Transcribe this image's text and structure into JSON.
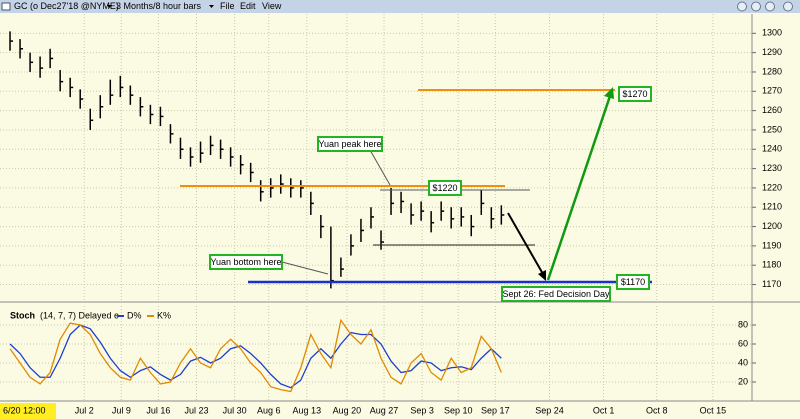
{
  "toolbar": {
    "symbol": "GC (o Dec27'18 @NYME)",
    "period": "3 Months/8 hour bars",
    "menu": [
      "File",
      "Edit",
      "View"
    ]
  },
  "chart_data": [
    {
      "type": "ohlc",
      "x": [
        2,
        4,
        6,
        8,
        10,
        12,
        14,
        16,
        18,
        20,
        22,
        24,
        26,
        28,
        30,
        32,
        34,
        36,
        38,
        40,
        42,
        44,
        46,
        48,
        50,
        52,
        54,
        56,
        58,
        60,
        62,
        64,
        66,
        68,
        70,
        72,
        74,
        76,
        78,
        80,
        82,
        84,
        86,
        88,
        90,
        92,
        94,
        96,
        98,
        100
      ],
      "high": [
        1301,
        1297,
        1290,
        1288,
        1292,
        1281,
        1277,
        1271,
        1261,
        1268,
        1276,
        1278,
        1273,
        1267,
        1263,
        1262,
        1253,
        1246,
        1241,
        1244,
        1247,
        1245,
        1241,
        1237,
        1233,
        1224,
        1225,
        1227,
        1225,
        1224,
        1218,
        1206,
        1200,
        1184,
        1196,
        1204,
        1210,
        1198,
        1220,
        1218,
        1212,
        1213,
        1208,
        1213,
        1210,
        1210,
        1206,
        1219,
        1210,
        1211
      ],
      "low": [
        1291,
        1287,
        1280,
        1277,
        1282,
        1270,
        1267,
        1261,
        1250,
        1256,
        1263,
        1267,
        1263,
        1257,
        1253,
        1252,
        1243,
        1235,
        1231,
        1233,
        1237,
        1235,
        1231,
        1227,
        1223,
        1213,
        1215,
        1217,
        1215,
        1215,
        1206,
        1194,
        1168,
        1174,
        1185,
        1192,
        1199,
        1188,
        1206,
        1207,
        1201,
        1203,
        1197,
        1203,
        1199,
        1200,
        1195,
        1206,
        1199,
        1201
      ],
      "close": [
        1296,
        1292,
        1285,
        1282,
        1287,
        1275,
        1272,
        1266,
        1255,
        1262,
        1268,
        1272,
        1268,
        1262,
        1258,
        1257,
        1248,
        1240,
        1236,
        1238,
        1242,
        1240,
        1236,
        1232,
        1228,
        1218,
        1220,
        1222,
        1220,
        1220,
        1212,
        1200,
        1172,
        1178,
        1190,
        1198,
        1205,
        1192,
        1212,
        1213,
        1206,
        1208,
        1202,
        1208,
        1204,
        1205,
        1200,
        1212,
        1204,
        1206
      ],
      "color": "#000000",
      "xlim": [
        0,
        150
      ],
      "ylim": [
        1162,
        1310
      ],
      "yticks": [
        1170,
        1180,
        1190,
        1200,
        1210,
        1220,
        1230,
        1240,
        1250,
        1260,
        1270,
        1280,
        1290,
        1300
      ],
      "grid": true,
      "annotations": [
        "$1270",
        "$1220",
        "$1170",
        "Sept 26: Fed Decision Day",
        "Yuan peak here",
        "Yuan bottom here"
      ]
    },
    {
      "type": "line",
      "title": "Stoch",
      "subtitle": "(14, 7, 7) Delayed e",
      "cursor_label": "6/20 12:00",
      "series": [
        {
          "name": "D%",
          "color": "#1f3fcc",
          "values": [
            60,
            50,
            35,
            25,
            25,
            45,
            70,
            80,
            76,
            62,
            45,
            32,
            25,
            32,
            36,
            28,
            22,
            28,
            42,
            46,
            40,
            45,
            55,
            58,
            50,
            40,
            28,
            18,
            14,
            22,
            45,
            55,
            45,
            60,
            72,
            70,
            70,
            60,
            42,
            30,
            32,
            42,
            40,
            32,
            35,
            36,
            33,
            45,
            55,
            45
          ]
        },
        {
          "name": "K%",
          "color": "#e08a00",
          "values": [
            55,
            40,
            25,
            18,
            30,
            65,
            82,
            80,
            70,
            50,
            35,
            25,
            22,
            45,
            30,
            18,
            20,
            40,
            55,
            40,
            35,
            55,
            65,
            55,
            40,
            30,
            15,
            12,
            10,
            35,
            70,
            50,
            35,
            85,
            70,
            60,
            75,
            45,
            25,
            18,
            40,
            50,
            30,
            22,
            45,
            30,
            35,
            68,
            55,
            30
          ]
        }
      ],
      "ylim": [
        0,
        100
      ],
      "yticks": [
        20,
        40,
        60,
        80
      ],
      "xticks": [
        {
          "value": 16.8,
          "label": "Jul 2"
        },
        {
          "value": 24.2,
          "label": "Jul 9"
        },
        {
          "value": 31.6,
          "label": "Jul 16"
        },
        {
          "value": 39.2,
          "label": "Jul 23"
        },
        {
          "value": 46.8,
          "label": "Jul 30"
        },
        {
          "value": 53.6,
          "label": "Aug 6"
        },
        {
          "value": 61.2,
          "label": "Aug 13"
        },
        {
          "value": 69.2,
          "label": "Aug 20"
        },
        {
          "value": 76.6,
          "label": "Aug 27"
        },
        {
          "value": 84.2,
          "label": "Sep 3"
        },
        {
          "value": 91.4,
          "label": "Sep 10"
        },
        {
          "value": 98.8,
          "label": "Sep 17"
        },
        {
          "value": 109.6,
          "label": "Sep 24"
        },
        {
          "value": 120.4,
          "label": "Oct 1"
        },
        {
          "value": 131,
          "label": "Oct 8"
        },
        {
          "value": 142.2,
          "label": "Oct 15"
        }
      ],
      "grid": true
    }
  ]
}
